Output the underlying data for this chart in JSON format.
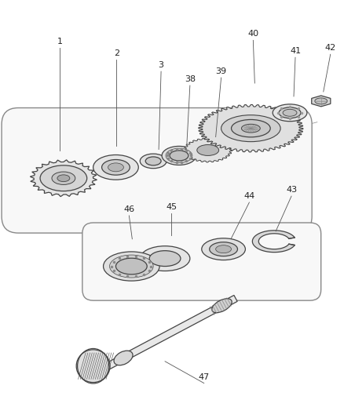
{
  "bg_color": "#ffffff",
  "line_color": "#444444",
  "label_color": "#333333",
  "lw": 0.9,
  "fig_w": 4.39,
  "fig_h": 5.33,
  "dpi": 100
}
